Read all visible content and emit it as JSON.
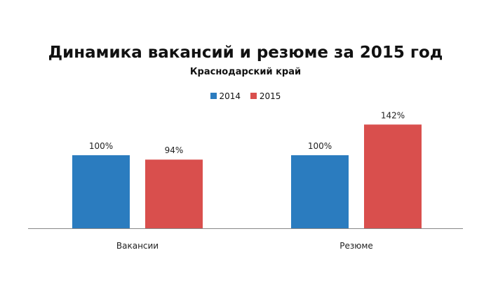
{
  "chart_data": {
    "type": "bar",
    "title": "Динамика вакансий и резюме за 2015 год",
    "subtitle": "Краснодарский край",
    "categories": [
      "Вакансии",
      "Резюме"
    ],
    "series": [
      {
        "name": "2014",
        "values": [
          100,
          100
        ],
        "labels": [
          "100%",
          "100%"
        ],
        "color": "#2b7cbf"
      },
      {
        "name": "2015",
        "values": [
          94,
          142
        ],
        "labels": [
          "94%",
          "142%"
        ],
        "color": "#d94f4d"
      }
    ],
    "xlabel": "",
    "ylabel": "",
    "ylim": [
      0,
      150
    ],
    "grid": false,
    "legend_position": "top-center"
  }
}
